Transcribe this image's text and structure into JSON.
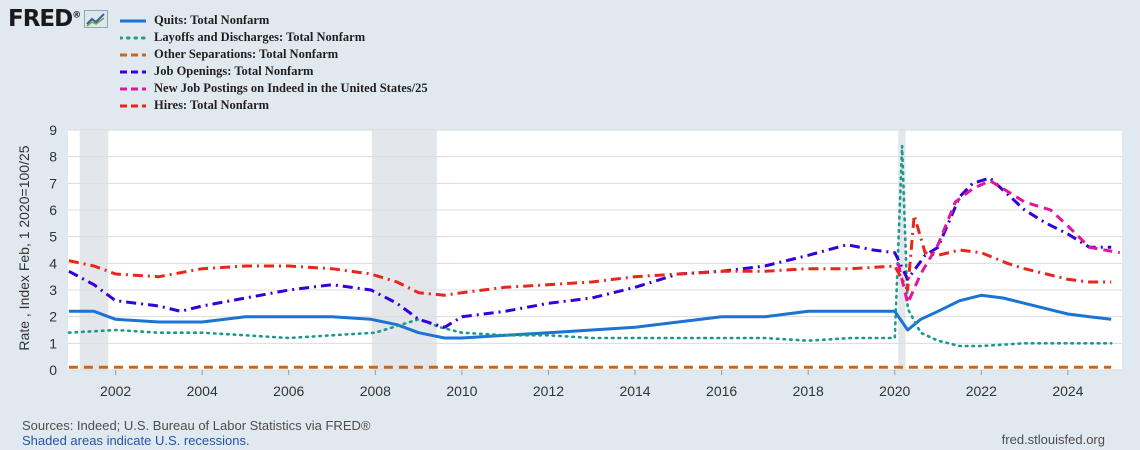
{
  "brand": {
    "name": "FRED",
    "mark": "®"
  },
  "y_axis_label": "Rate , Index Feb, 1 2020=100/25",
  "footer": {
    "sources": "Sources: Indeed; U.S. Bureau of Labor Statistics via FRED®",
    "recessions_note": "Shaded areas indicate U.S. recessions.",
    "site": "fred.stlouisfed.org"
  },
  "chart_data": {
    "type": "line",
    "xlabel": "",
    "ylabel": "Rate , Index Feb, 1 2020=100/25",
    "xlim": [
      2000.9,
      2025.25
    ],
    "ylim": [
      0,
      9
    ],
    "x_ticks": [
      2002,
      2004,
      2006,
      2008,
      2010,
      2012,
      2014,
      2016,
      2018,
      2020,
      2022,
      2024
    ],
    "y_ticks": [
      0,
      1,
      2,
      3,
      4,
      5,
      6,
      7,
      8,
      9
    ],
    "grid": "horizontal",
    "legend_position": "top-left",
    "recessions": [
      [
        2001.17,
        2001.83
      ],
      [
        2007.92,
        2009.42
      ],
      [
        2020.08,
        2020.25
      ]
    ],
    "series": [
      {
        "name": "Quits: Total Nonfarm",
        "color": "#1b73d3",
        "style": "solid",
        "points": [
          [
            2000.92,
            2.2
          ],
          [
            2001.5,
            2.2
          ],
          [
            2002,
            1.9
          ],
          [
            2003,
            1.8
          ],
          [
            2004,
            1.8
          ],
          [
            2005,
            2.0
          ],
          [
            2006,
            2.0
          ],
          [
            2007,
            2.0
          ],
          [
            2007.9,
            1.9
          ],
          [
            2008.5,
            1.7
          ],
          [
            2009,
            1.4
          ],
          [
            2009.6,
            1.2
          ],
          [
            2010,
            1.2
          ],
          [
            2011,
            1.3
          ],
          [
            2012,
            1.4
          ],
          [
            2013,
            1.5
          ],
          [
            2014,
            1.6
          ],
          [
            2015,
            1.8
          ],
          [
            2016,
            2.0
          ],
          [
            2017,
            2.0
          ],
          [
            2018,
            2.2
          ],
          [
            2019,
            2.2
          ],
          [
            2020.0,
            2.2
          ],
          [
            2020.3,
            1.5
          ],
          [
            2020.6,
            1.9
          ],
          [
            2021,
            2.2
          ],
          [
            2021.5,
            2.6
          ],
          [
            2022,
            2.8
          ],
          [
            2022.5,
            2.7
          ],
          [
            2023,
            2.5
          ],
          [
            2023.5,
            2.3
          ],
          [
            2024,
            2.1
          ],
          [
            2024.5,
            2.0
          ],
          [
            2025,
            1.9
          ]
        ]
      },
      {
        "name": "Layoffs and Discharges: Total Nonfarm",
        "color": "#1a9a8c",
        "style": "dotted",
        "points": [
          [
            2000.92,
            1.4
          ],
          [
            2002,
            1.5
          ],
          [
            2003,
            1.4
          ],
          [
            2004,
            1.4
          ],
          [
            2005,
            1.3
          ],
          [
            2006,
            1.2
          ],
          [
            2007,
            1.3
          ],
          [
            2008,
            1.4
          ],
          [
            2009,
            1.9
          ],
          [
            2009.5,
            1.6
          ],
          [
            2010,
            1.4
          ],
          [
            2011,
            1.3
          ],
          [
            2012,
            1.3
          ],
          [
            2013,
            1.2
          ],
          [
            2014,
            1.2
          ],
          [
            2015,
            1.2
          ],
          [
            2016,
            1.2
          ],
          [
            2017,
            1.2
          ],
          [
            2018,
            1.1
          ],
          [
            2019,
            1.2
          ],
          [
            2020.0,
            1.2
          ],
          [
            2020.17,
            8.4
          ],
          [
            2020.3,
            2.3
          ],
          [
            2020.6,
            1.4
          ],
          [
            2021,
            1.1
          ],
          [
            2021.5,
            0.9
          ],
          [
            2022,
            0.9
          ],
          [
            2023,
            1.0
          ],
          [
            2024,
            1.0
          ],
          [
            2025,
            1.0
          ]
        ]
      },
      {
        "name": "Other Separations: Total Nonfarm",
        "color": "#c8661a",
        "style": "dashed",
        "points": [
          [
            2000.92,
            0.1
          ],
          [
            2005,
            0.1
          ],
          [
            2010,
            0.1
          ],
          [
            2015,
            0.1
          ],
          [
            2020,
            0.1
          ],
          [
            2021,
            0.1
          ],
          [
            2025,
            0.1
          ]
        ]
      },
      {
        "name": "Job Openings: Total Nonfarm",
        "color": "#3300dd",
        "style": "dashdot",
        "points": [
          [
            2000.92,
            3.7
          ],
          [
            2001.5,
            3.2
          ],
          [
            2002,
            2.6
          ],
          [
            2003,
            2.4
          ],
          [
            2003.5,
            2.2
          ],
          [
            2004,
            2.4
          ],
          [
            2005,
            2.7
          ],
          [
            2006,
            3.0
          ],
          [
            2007,
            3.2
          ],
          [
            2007.9,
            3.0
          ],
          [
            2008.5,
            2.5
          ],
          [
            2009,
            1.9
          ],
          [
            2009.6,
            1.6
          ],
          [
            2010,
            2.0
          ],
          [
            2011,
            2.2
          ],
          [
            2012,
            2.5
          ],
          [
            2013,
            2.7
          ],
          [
            2014,
            3.1
          ],
          [
            2015,
            3.6
          ],
          [
            2016,
            3.7
          ],
          [
            2017,
            3.9
          ],
          [
            2018,
            4.3
          ],
          [
            2018.9,
            4.7
          ],
          [
            2019.5,
            4.5
          ],
          [
            2020.0,
            4.4
          ],
          [
            2020.3,
            3.4
          ],
          [
            2020.7,
            4.3
          ],
          [
            2021,
            4.6
          ],
          [
            2021.5,
            6.5
          ],
          [
            2021.8,
            7.0
          ],
          [
            2022.2,
            7.2
          ],
          [
            2022.6,
            6.6
          ],
          [
            2023,
            6.0
          ],
          [
            2023.5,
            5.5
          ],
          [
            2024,
            5.1
          ],
          [
            2024.5,
            4.6
          ],
          [
            2025,
            4.6
          ]
        ]
      },
      {
        "name": "New Job Postings on Indeed in the United States/25",
        "color": "#e0179c",
        "style": "dashed",
        "points": [
          [
            2020.08,
            4.0
          ],
          [
            2020.3,
            2.5
          ],
          [
            2020.6,
            3.6
          ],
          [
            2021,
            4.7
          ],
          [
            2021.4,
            6.3
          ],
          [
            2021.8,
            6.8
          ],
          [
            2022.2,
            7.1
          ],
          [
            2022.6,
            6.7
          ],
          [
            2023,
            6.3
          ],
          [
            2023.6,
            6.0
          ],
          [
            2024,
            5.4
          ],
          [
            2024.5,
            4.6
          ],
          [
            2025.2,
            4.4
          ]
        ]
      },
      {
        "name": "Hires: Total Nonfarm",
        "color": "#e8261c",
        "style": "dashdot",
        "points": [
          [
            2000.92,
            4.1
          ],
          [
            2001.5,
            3.9
          ],
          [
            2002,
            3.6
          ],
          [
            2003,
            3.5
          ],
          [
            2004,
            3.8
          ],
          [
            2005,
            3.9
          ],
          [
            2006,
            3.9
          ],
          [
            2007,
            3.8
          ],
          [
            2007.9,
            3.6
          ],
          [
            2008.5,
            3.3
          ],
          [
            2009,
            2.9
          ],
          [
            2009.6,
            2.8
          ],
          [
            2010,
            2.9
          ],
          [
            2011,
            3.1
          ],
          [
            2012,
            3.2
          ],
          [
            2013,
            3.3
          ],
          [
            2014,
            3.5
          ],
          [
            2015,
            3.6
          ],
          [
            2016,
            3.7
          ],
          [
            2017,
            3.7
          ],
          [
            2018,
            3.8
          ],
          [
            2019,
            3.8
          ],
          [
            2020.0,
            3.9
          ],
          [
            2020.3,
            3.0
          ],
          [
            2020.45,
            5.8
          ],
          [
            2020.7,
            4.4
          ],
          [
            2021,
            4.3
          ],
          [
            2021.5,
            4.5
          ],
          [
            2022,
            4.4
          ],
          [
            2022.6,
            4.0
          ],
          [
            2023,
            3.8
          ],
          [
            2023.5,
            3.6
          ],
          [
            2024,
            3.4
          ],
          [
            2024.5,
            3.3
          ],
          [
            2025,
            3.3
          ]
        ]
      }
    ]
  }
}
